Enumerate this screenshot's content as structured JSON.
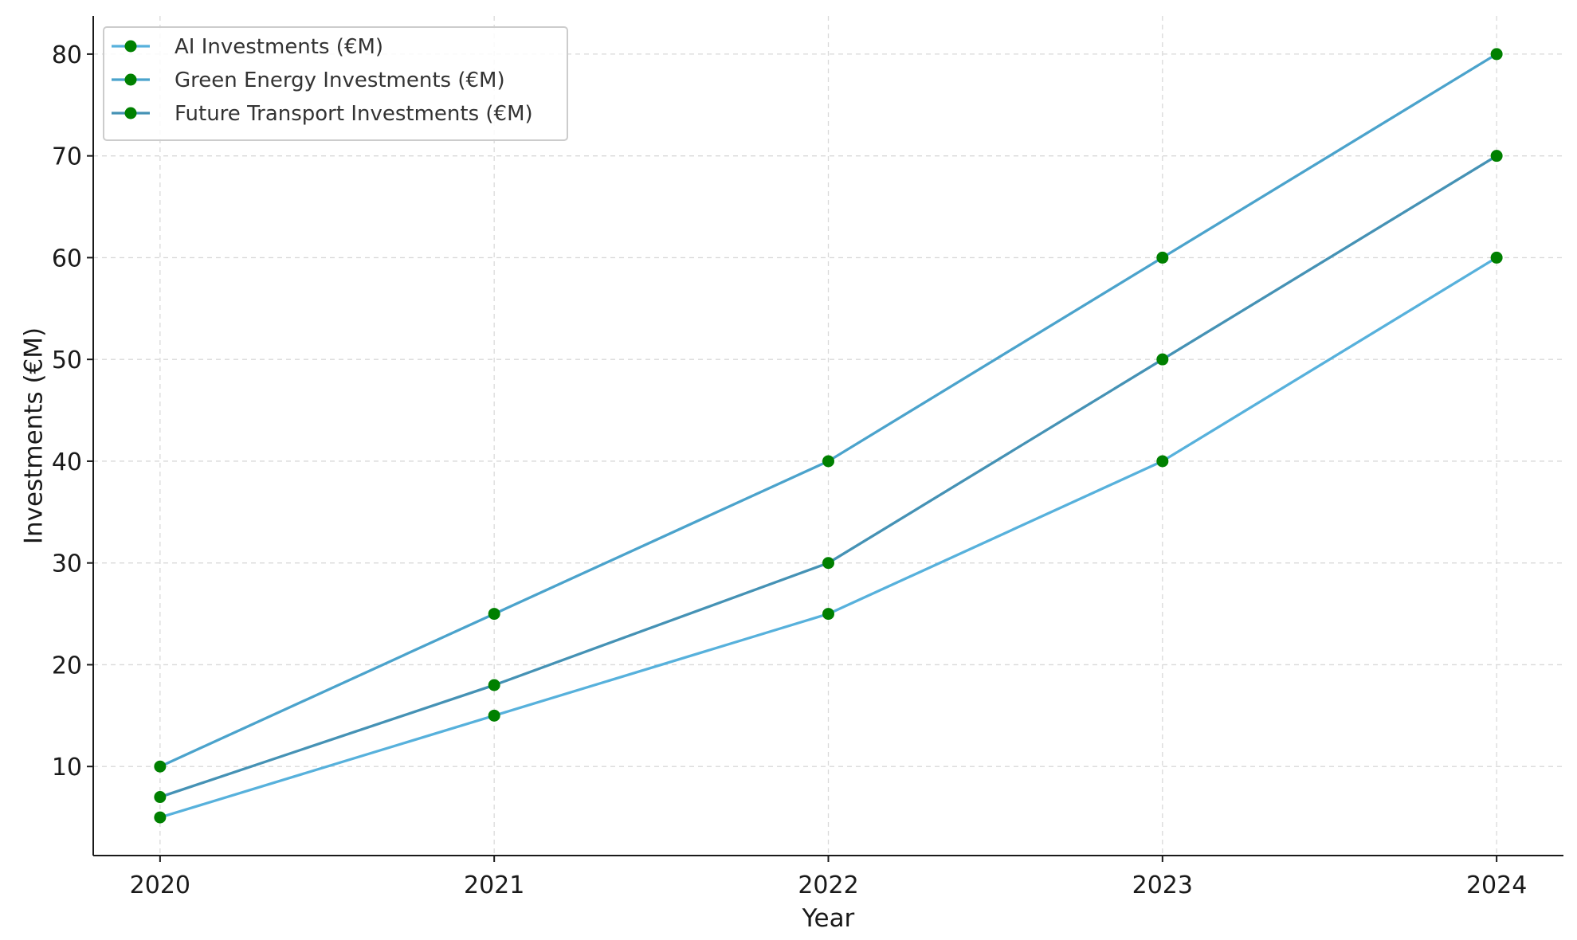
{
  "chart_data": {
    "type": "line",
    "title": "",
    "xlabel": "Year",
    "ylabel": "Investments (€M)",
    "x": [
      "2020",
      "2021",
      "2022",
      "2023",
      "2024"
    ],
    "xlim": [
      2019.8,
      2024.2
    ],
    "ylim": [
      1.25,
      83.75
    ],
    "yticks": [
      10,
      20,
      30,
      40,
      50,
      60,
      70,
      80
    ],
    "grid": true,
    "legend_position": "top-left",
    "marker_color": "#008000",
    "series": [
      {
        "name": "AI Investments (€M)",
        "values": [
          5,
          15,
          25,
          40,
          60
        ],
        "color": "#57b1dc"
      },
      {
        "name": "Green Energy Investments (€M)",
        "values": [
          10,
          25,
          40,
          60,
          80
        ],
        "color": "#4ba3cc"
      },
      {
        "name": "Future Transport Investments (€M)",
        "values": [
          7,
          18,
          30,
          50,
          70
        ],
        "color": "#4592b5"
      }
    ]
  }
}
